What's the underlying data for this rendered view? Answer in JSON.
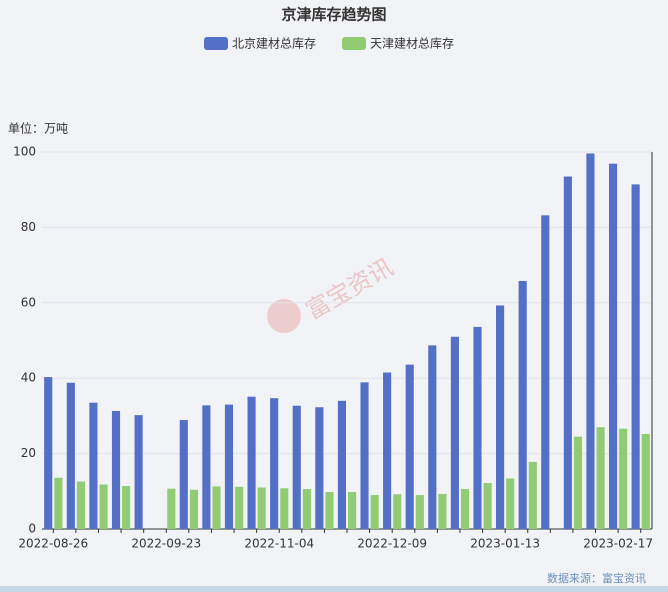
{
  "chart_data": {
    "type": "bar",
    "title": "京津库存趋势图",
    "unit_label": "单位：万吨",
    "source": "数据来源：富宝资讯",
    "watermark": "富宝资讯",
    "categories": [
      "2022-08-26",
      null,
      null,
      null,
      null,
      "2022-09-23",
      null,
      null,
      null,
      null,
      "2022-11-04",
      null,
      null,
      null,
      null,
      "2022-12-09",
      null,
      null,
      null,
      null,
      "2023-01-13",
      null,
      null,
      null,
      null,
      "2023-02-17",
      null
    ],
    "series": [
      {
        "name": "北京建材总库存",
        "color": "#5470c6",
        "values": [
          40.3,
          38.8,
          33.5,
          31.3,
          30.2,
          null,
          28.9,
          32.8,
          33.0,
          35.1,
          34.7,
          32.7,
          32.3,
          34.0,
          38.9,
          41.5,
          43.6,
          48.7,
          51.0,
          53.6,
          59.3,
          65.8,
          83.2,
          93.5,
          99.6,
          96.9,
          91.4
        ]
      },
      {
        "name": "天津建材总库存",
        "color": "#91cc75",
        "values": [
          13.6,
          12.6,
          11.8,
          11.4,
          null,
          10.7,
          10.4,
          11.3,
          11.2,
          11.0,
          10.8,
          10.6,
          9.8,
          9.8,
          9.0,
          9.2,
          9.0,
          9.3,
          10.6,
          12.2,
          13.4,
          17.8,
          null,
          24.5,
          27.0,
          26.6,
          25.2
        ]
      }
    ],
    "ylim": [
      0,
      100
    ],
    "yticks": [
      0,
      20,
      40,
      60,
      80,
      100
    ],
    "grid": true
  }
}
